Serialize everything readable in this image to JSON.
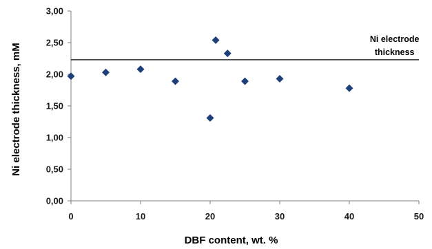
{
  "chart_data": {
    "type": "scatter",
    "xlabel": "DBF content, wt. %",
    "ylabel": "Ni electrode thickness, mM",
    "xlim": [
      0,
      50
    ],
    "ylim": [
      0,
      3
    ],
    "x_ticks": [
      0,
      10,
      20,
      30,
      40,
      50
    ],
    "y_ticks": [
      0,
      0.5,
      1,
      1.5,
      2,
      2.5,
      3
    ],
    "x_tick_labels": [
      "0",
      "10",
      "20",
      "30",
      "40",
      "50"
    ],
    "y_tick_labels": [
      "0,00",
      "0,50",
      "1,00",
      "1,50",
      "2,00",
      "2,50",
      "3,00"
    ],
    "grid": false,
    "marker": "diamond",
    "marker_color": "#1f3f7a",
    "series": [
      {
        "x": [
          0,
          5,
          10,
          15,
          20,
          20.8,
          22.5,
          25,
          30,
          40
        ],
        "y": [
          1.97,
          2.03,
          2.08,
          1.89,
          1.31,
          2.54,
          2.33,
          1.89,
          1.93,
          1.78
        ]
      }
    ],
    "reference_line": {
      "y": 2.23,
      "x_range": [
        0,
        50
      ],
      "label_lines": [
        "Ni electrode",
        "thickness"
      ],
      "color": "#000000"
    }
  }
}
